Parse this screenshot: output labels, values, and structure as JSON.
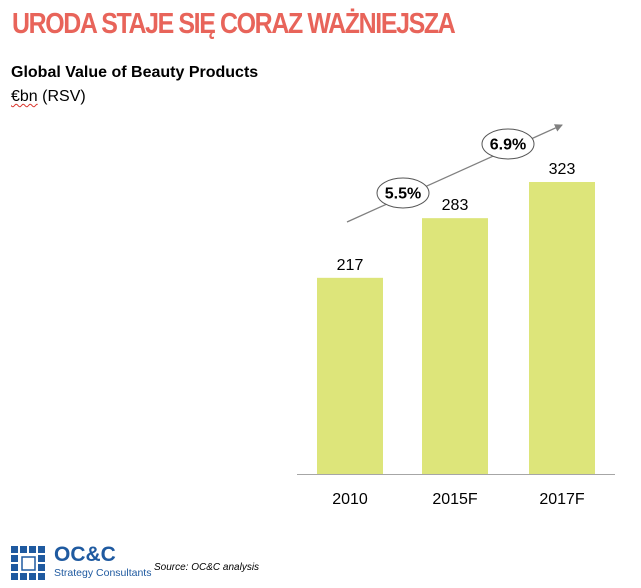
{
  "header": {
    "headline": "URODA STAJE SIĘ CORAZ WAŻNIEJSZA"
  },
  "chart_data": {
    "type": "bar",
    "title": "Global Value of Beauty Products",
    "subtitle_unit": "€bn",
    "subtitle_rest": " (RSV)",
    "categories": [
      "2010",
      "2015F",
      "2017F"
    ],
    "values": [
      217,
      283,
      323
    ],
    "growth_labels": [
      "5.5%",
      "6.9%"
    ],
    "ylim": [
      0,
      323
    ],
    "xlabel": "",
    "ylabel": "",
    "grid": false,
    "legend": "none",
    "bar_color": "#dde57a"
  },
  "footer": {
    "logo_name": "OC&C",
    "logo_tagline": "Strategy Consultants",
    "source": "Source: OC&C analysis"
  },
  "colors": {
    "headline": "#e8645a",
    "logo": "#1f5aa0",
    "arrow": "#808080",
    "axis": "#a6a6a6"
  }
}
